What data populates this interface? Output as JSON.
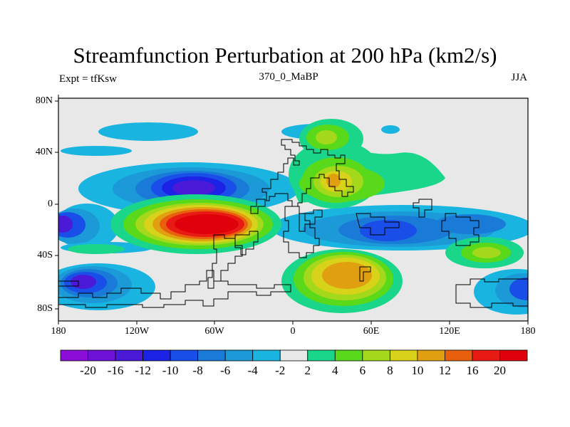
{
  "title": "Streamfunction Perturbation at 200 hPa (km2/s)",
  "left_label": "Expt = tfKsw",
  "center_label": "370_0_MaBP",
  "right_label": "JJA",
  "lat_ticks": [
    "80N",
    "40N",
    "0",
    "40S",
    "80S"
  ],
  "lon_ticks": [
    "180",
    "120W",
    "60W",
    "0",
    "60E",
    "120E",
    "180"
  ],
  "colorbar": {
    "labels": [
      "-20",
      "-16",
      "-12",
      "-10",
      "-8",
      "-6",
      "-4",
      "-2",
      "2",
      "4",
      "6",
      "8",
      "10",
      "12",
      "16",
      "20"
    ],
    "colors": [
      "#8a0ed8",
      "#6e12d8",
      "#4a1ad8",
      "#1c22e6",
      "#1a4ee8",
      "#1a7ad8",
      "#1c9ad8",
      "#1ab4e0",
      "#e8e8e8",
      "#1ad68a",
      "#5ad81a",
      "#a4d81a",
      "#d8d21a",
      "#e0a010",
      "#e8600e",
      "#e81a14",
      "#e0000c"
    ]
  },
  "colors": {
    "background": "#e8e8e8",
    "frame": "#000000",
    "coast": "#000000"
  }
}
